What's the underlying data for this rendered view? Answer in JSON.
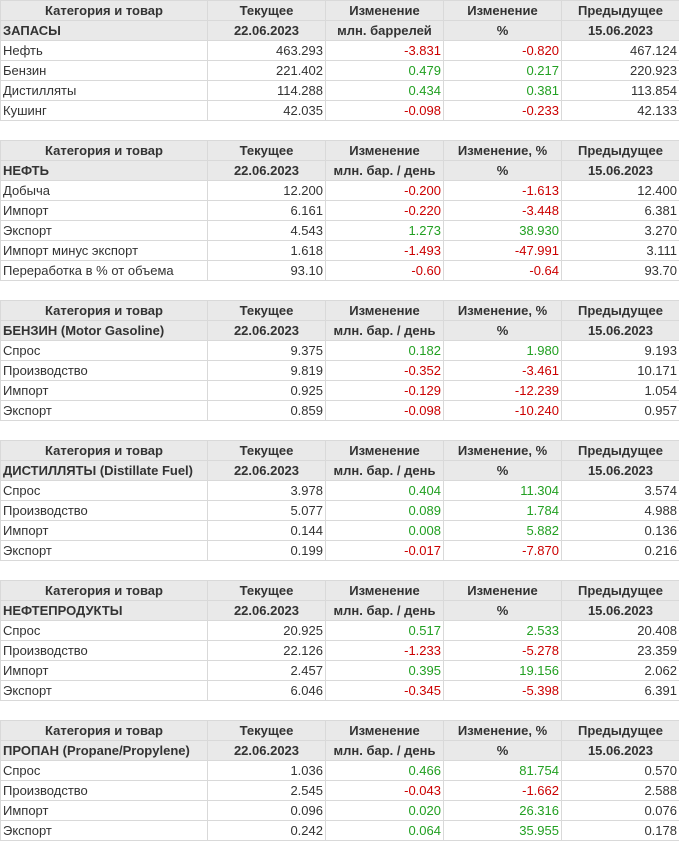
{
  "colors": {
    "negative": "#cc0000",
    "positive": "#22a022",
    "header_bg": "#e9e9e9"
  },
  "tables": [
    {
      "header1": [
        "Категория и товар",
        "Текущее",
        "Изменение",
        "Изменение",
        "Предыдущее"
      ],
      "header2": [
        "ЗАПАСЫ",
        "22.06.2023",
        "млн. баррелей",
        "%",
        "15.06.2023"
      ],
      "rows": [
        [
          "Нефть",
          "463.293",
          "-3.831",
          "-0.820",
          "467.124"
        ],
        [
          "Бензин",
          "221.402",
          "0.479",
          "0.217",
          "220.923"
        ],
        [
          "Дистилляты",
          "114.288",
          "0.434",
          "0.381",
          "113.854"
        ],
        [
          "Кушинг",
          "42.035",
          "-0.098",
          "-0.233",
          "42.133"
        ]
      ]
    },
    {
      "header1": [
        "Категория и товар",
        "Текущее",
        "Изменение",
        "Изменение, %",
        "Предыдущее"
      ],
      "header2": [
        "НЕФТЬ",
        "22.06.2023",
        "млн. бар. / день",
        "%",
        "15.06.2023"
      ],
      "rows": [
        [
          "Добыча",
          "12.200",
          "-0.200",
          "-1.613",
          "12.400"
        ],
        [
          "Импорт",
          "6.161",
          "-0.220",
          "-3.448",
          "6.381"
        ],
        [
          "Экспорт",
          "4.543",
          "1.273",
          "38.930",
          "3.270"
        ],
        [
          "Импорт минус экспорт",
          "1.618",
          "-1.493",
          "-47.991",
          "3.111"
        ],
        [
          "Переработка в % от объема",
          "93.10",
          "-0.60",
          "-0.64",
          "93.70"
        ]
      ]
    },
    {
      "header1": [
        "Категория и товар",
        "Текущее",
        "Изменение",
        "Изменение, %",
        "Предыдущее"
      ],
      "header2": [
        "БЕНЗИН (Motor Gasoline)",
        "22.06.2023",
        "млн. бар. / день",
        "%",
        "15.06.2023"
      ],
      "rows": [
        [
          "Спрос",
          "9.375",
          "0.182",
          "1.980",
          "9.193"
        ],
        [
          "Производство",
          "9.819",
          "-0.352",
          "-3.461",
          "10.171"
        ],
        [
          "Импорт",
          "0.925",
          "-0.129",
          "-12.239",
          "1.054"
        ],
        [
          "Экспорт",
          "0.859",
          "-0.098",
          "-10.240",
          "0.957"
        ]
      ]
    },
    {
      "header1": [
        "Категория и товар",
        "Текущее",
        "Изменение",
        "Изменение, %",
        "Предыдущее"
      ],
      "header2": [
        "ДИСТИЛЛЯТЫ (Distillate Fuel)",
        "22.06.2023",
        "млн. бар. / день",
        "%",
        "15.06.2023"
      ],
      "rows": [
        [
          "Спрос",
          "3.978",
          "0.404",
          "11.304",
          "3.574"
        ],
        [
          "Производство",
          "5.077",
          "0.089",
          "1.784",
          "4.988"
        ],
        [
          "Импорт",
          "0.144",
          "0.008",
          "5.882",
          "0.136"
        ],
        [
          "Экспорт",
          "0.199",
          "-0.017",
          "-7.870",
          "0.216"
        ]
      ]
    },
    {
      "header1": [
        "Категория и товар",
        "Текущее",
        "Изменение",
        "Изменение",
        "Предыдущее"
      ],
      "header2": [
        "НЕФТЕПРОДУКТЫ",
        "22.06.2023",
        "млн. бар. / день",
        "%",
        "15.06.2023"
      ],
      "rows": [
        [
          "Спрос",
          "20.925",
          "0.517",
          "2.533",
          "20.408"
        ],
        [
          "Производство",
          "22.126",
          "-1.233",
          "-5.278",
          "23.359"
        ],
        [
          "Импорт",
          "2.457",
          "0.395",
          "19.156",
          "2.062"
        ],
        [
          "Экспорт",
          "6.046",
          "-0.345",
          "-5.398",
          "6.391"
        ]
      ]
    },
    {
      "header1": [
        "Категория и товар",
        "Текущее",
        "Изменение",
        "Изменение, %",
        "Предыдущее"
      ],
      "header2": [
        "ПРОПАН (Propane/Propylene)",
        "22.06.2023",
        "млн. бар. / день",
        "%",
        "15.06.2023"
      ],
      "rows": [
        [
          "Спрос",
          "1.036",
          "0.466",
          "81.754",
          "0.570"
        ],
        [
          "Производство",
          "2.545",
          "-0.043",
          "-1.662",
          "2.588"
        ],
        [
          "Импорт",
          "0.096",
          "0.020",
          "26.316",
          "0.076"
        ],
        [
          "Экспорт",
          "0.242",
          "0.064",
          "35.955",
          "0.178"
        ]
      ]
    }
  ]
}
